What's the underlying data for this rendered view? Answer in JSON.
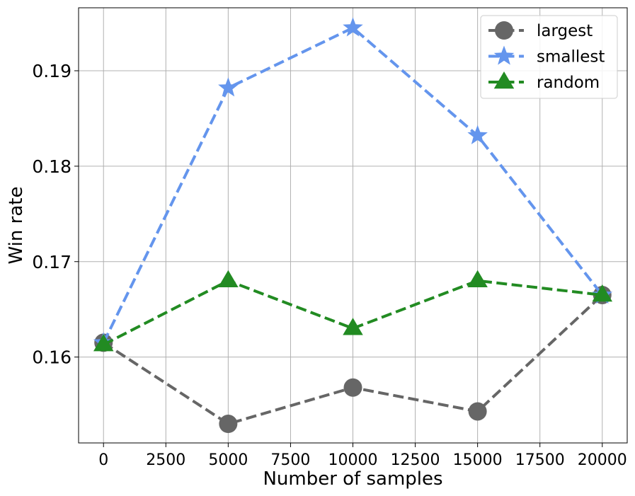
{
  "chart_data": {
    "type": "line",
    "title": "",
    "xlabel": "Number of samples",
    "ylabel": "Win rate",
    "x": [
      0,
      5000,
      10000,
      15000,
      20000
    ],
    "xlim": [
      -1000,
      21000
    ],
    "ylim": [
      0.151,
      0.1966
    ],
    "xticks": [
      0,
      2500,
      5000,
      7500,
      10000,
      12500,
      15000,
      17500,
      20000
    ],
    "yticks": [
      0.16,
      0.17,
      0.18,
      0.19
    ],
    "xtick_labels": [
      "0",
      "2500",
      "5000",
      "7500",
      "10000",
      "12500",
      "15000",
      "17500",
      "20000"
    ],
    "ytick_labels": [
      "0.16",
      "0.17",
      "0.18",
      "0.19"
    ],
    "grid": true,
    "legend_position": "top-right",
    "series": [
      {
        "name": "largest",
        "color": "#666666",
        "marker": "circle",
        "linestyle": "dashed",
        "values": [
          0.1615,
          0.153,
          0.1568,
          0.1543,
          0.1665
        ]
      },
      {
        "name": "smallest",
        "color": "#6495ED",
        "marker": "star",
        "linestyle": "dashed",
        "values": [
          0.1615,
          0.1882,
          0.1945,
          0.1832,
          0.1665
        ]
      },
      {
        "name": "random",
        "color": "#228B22",
        "marker": "triangle",
        "linestyle": "dashed",
        "values": [
          0.1613,
          0.168,
          0.163,
          0.168,
          0.1665
        ]
      }
    ]
  }
}
